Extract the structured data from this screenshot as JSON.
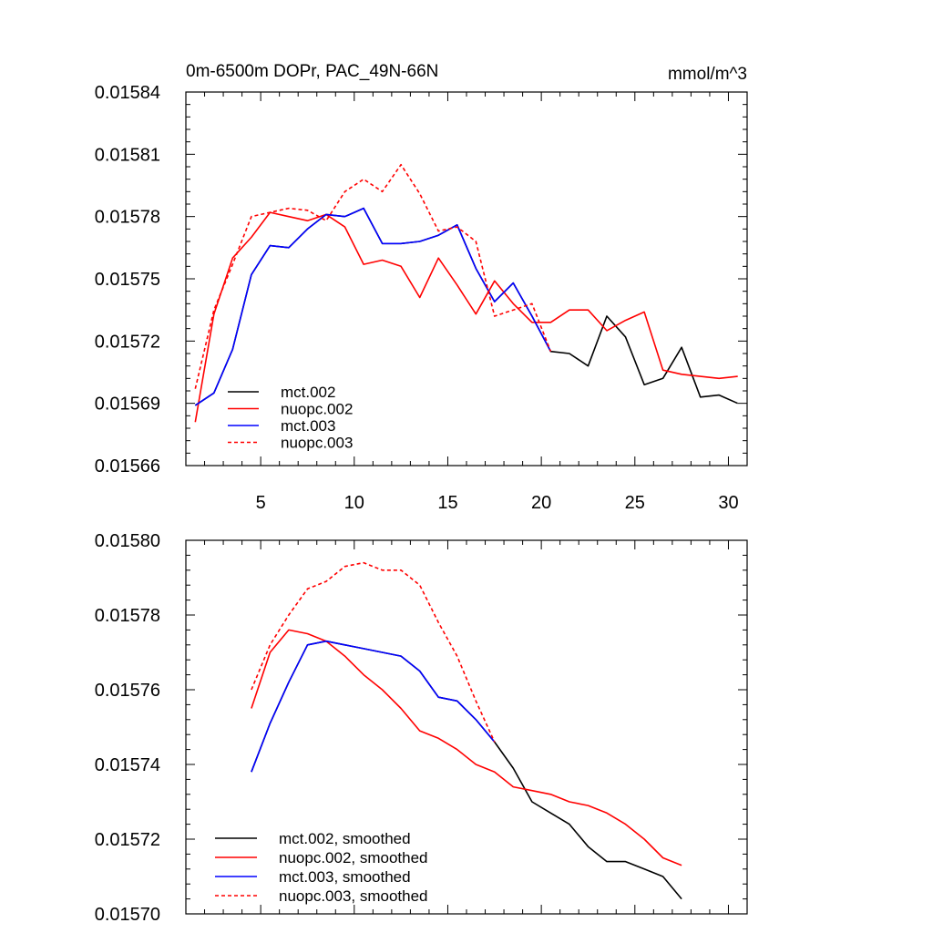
{
  "chart_data": [
    {
      "type": "line",
      "title": "0m-6500m DOPr, PAC_49N-66N",
      "units": "mmol/m^3",
      "xlim": [
        1,
        31
      ],
      "ylim": [
        0.01566,
        0.01584
      ],
      "xticks": [
        5,
        10,
        15,
        20,
        25,
        30
      ],
      "xtick_labels": [
        "5",
        "10",
        "15",
        "20",
        "25",
        "30"
      ],
      "yticks": [
        0.01566,
        0.01569,
        0.01572,
        0.01575,
        0.01578,
        0.01581,
        0.01584
      ],
      "ytick_labels": [
        "0.01566",
        "0.01569",
        "0.01572",
        "0.01575",
        "0.01578",
        "0.01581",
        "0.01584"
      ],
      "legend_position": "bottom-left",
      "series": [
        {
          "name": "mct.002",
          "color": "#000000",
          "dash": "solid",
          "x": [
            1.5,
            2.5,
            3.5,
            4.5,
            5.5,
            6.5,
            7.5,
            8.5,
            9.5,
            10.5,
            11.5,
            12.5,
            13.5,
            14.5,
            15.5,
            16.5,
            17.5,
            18.5,
            19.5,
            20.5,
            21.5,
            22.5,
            23.5,
            24.5,
            25.5,
            26.5,
            27.5,
            28.5,
            29.5,
            30.5
          ],
          "y": [
            0.015689,
            0.015695,
            0.015716,
            0.015752,
            0.015766,
            0.015765,
            0.015774,
            0.015781,
            0.01578,
            0.015784,
            0.015767,
            0.015767,
            0.015768,
            0.015771,
            0.015776,
            0.015755,
            0.015739,
            0.015748,
            0.015732,
            0.015715,
            0.015714,
            0.015708,
            0.015732,
            0.015722,
            0.015699,
            0.015702,
            0.015717,
            0.015693,
            0.015694,
            0.01569
          ]
        },
        {
          "name": "nuopc.002",
          "color": "#ff0000",
          "dash": "solid",
          "x": [
            1.5,
            2.5,
            3.5,
            4.5,
            5.5,
            6.5,
            7.5,
            8.5,
            9.5,
            10.5,
            11.5,
            12.5,
            13.5,
            14.5,
            15.5,
            16.5,
            17.5,
            18.5,
            19.5,
            20.5,
            21.5,
            22.5,
            23.5,
            24.5,
            25.5,
            26.5,
            27.5,
            28.5,
            29.5,
            30.5
          ],
          "y": [
            0.015681,
            0.015733,
            0.01576,
            0.01577,
            0.015782,
            0.01578,
            0.015778,
            0.015781,
            0.015775,
            0.015757,
            0.015759,
            0.015756,
            0.015741,
            0.01576,
            0.015747,
            0.015733,
            0.015749,
            0.015738,
            0.015729,
            0.015729,
            0.015735,
            0.015735,
            0.015725,
            0.01573,
            0.015734,
            0.015706,
            0.015704,
            0.015703,
            0.015702,
            0.015703
          ]
        },
        {
          "name": "mct.003",
          "color": "#0000ff",
          "dash": "solid",
          "x": [
            1.5,
            2.5,
            3.5,
            4.5,
            5.5,
            6.5,
            7.5,
            8.5,
            9.5,
            10.5,
            11.5,
            12.5,
            13.5,
            14.5,
            15.5,
            16.5,
            17.5,
            18.5,
            19.5,
            20.5
          ],
          "y": [
            0.015689,
            0.015695,
            0.015716,
            0.015752,
            0.015766,
            0.015765,
            0.015774,
            0.015781,
            0.01578,
            0.015784,
            0.015767,
            0.015767,
            0.015768,
            0.015771,
            0.015776,
            0.015755,
            0.015739,
            0.015748,
            0.015732,
            0.015715
          ]
        },
        {
          "name": "nuopc.003",
          "color": "#ff0000",
          "dash": "dashed",
          "x": [
            1.5,
            2.5,
            3.5,
            4.5,
            5.5,
            6.5,
            7.5,
            8.5,
            9.5,
            10.5,
            11.5,
            12.5,
            13.5,
            14.5,
            15.5,
            16.5,
            17.5,
            18.5,
            19.5,
            20.5
          ],
          "y": [
            0.015697,
            0.015735,
            0.015757,
            0.01578,
            0.015782,
            0.015784,
            0.015783,
            0.015778,
            0.015792,
            0.015798,
            0.015792,
            0.015805,
            0.015791,
            0.015773,
            0.015775,
            0.015768,
            0.015732,
            0.015735,
            0.015738,
            0.015715
          ]
        }
      ]
    },
    {
      "type": "line",
      "title": "",
      "xlim": [
        1,
        31
      ],
      "ylim": [
        0.0157,
        0.0158
      ],
      "xticks": [
        5,
        10,
        15,
        20,
        25,
        30
      ],
      "xtick_labels": [],
      "yticks": [
        0.0157,
        0.01572,
        0.01574,
        0.01576,
        0.01578,
        0.0158
      ],
      "ytick_labels": [
        "0.01570",
        "0.01572",
        "0.01574",
        "0.01576",
        "0.01578",
        "0.01580"
      ],
      "legend_position": "bottom-left",
      "series": [
        {
          "name": "mct.002, smoothed",
          "color": "#000000",
          "dash": "solid",
          "x": [
            4.5,
            5.5,
            6.5,
            7.5,
            8.5,
            9.5,
            10.5,
            11.5,
            12.5,
            13.5,
            14.5,
            15.5,
            16.5,
            17.5,
            18.5,
            19.5,
            20.5,
            21.5,
            22.5,
            23.5,
            24.5,
            25.5,
            26.5,
            27.5
          ],
          "y": [
            0.015738,
            0.015751,
            0.015762,
            0.015772,
            0.015773,
            0.015772,
            0.015771,
            0.01577,
            0.015769,
            0.015765,
            0.015758,
            0.015757,
            0.015752,
            0.015746,
            0.015739,
            0.01573,
            0.015727,
            0.015724,
            0.015718,
            0.015714,
            0.015714,
            0.015712,
            0.01571,
            0.015704
          ]
        },
        {
          "name": "nuopc.002, smoothed",
          "color": "#ff0000",
          "dash": "solid",
          "x": [
            4.5,
            5.5,
            6.5,
            7.5,
            8.5,
            9.5,
            10.5,
            11.5,
            12.5,
            13.5,
            14.5,
            15.5,
            16.5,
            17.5,
            18.5,
            19.5,
            20.5,
            21.5,
            22.5,
            23.5,
            24.5,
            25.5,
            26.5,
            27.5
          ],
          "y": [
            0.015755,
            0.01577,
            0.015776,
            0.015775,
            0.015773,
            0.015769,
            0.015764,
            0.01576,
            0.015755,
            0.015749,
            0.015747,
            0.015744,
            0.01574,
            0.015738,
            0.015734,
            0.015733,
            0.015732,
            0.01573,
            0.015729,
            0.015727,
            0.015724,
            0.01572,
            0.015715,
            0.015713
          ]
        },
        {
          "name": "mct.003, smoothed",
          "color": "#0000ff",
          "dash": "solid",
          "x": [
            4.5,
            5.5,
            6.5,
            7.5,
            8.5,
            9.5,
            10.5,
            11.5,
            12.5,
            13.5,
            14.5,
            15.5,
            16.5,
            17.5
          ],
          "y": [
            0.015738,
            0.015751,
            0.015762,
            0.015772,
            0.015773,
            0.015772,
            0.015771,
            0.01577,
            0.015769,
            0.015765,
            0.015758,
            0.015757,
            0.015752,
            0.015746
          ]
        },
        {
          "name": "nuopc.003, smoothed",
          "color": "#ff0000",
          "dash": "dashed",
          "x": [
            4.5,
            5.5,
            6.5,
            7.5,
            8.5,
            9.5,
            10.5,
            11.5,
            12.5,
            13.5,
            14.5,
            15.5,
            16.5,
            17.5
          ],
          "y": [
            0.01576,
            0.015772,
            0.01578,
            0.015787,
            0.015789,
            0.015793,
            0.015794,
            0.015792,
            0.015792,
            0.015788,
            0.015778,
            0.015769,
            0.015757,
            0.015746
          ]
        }
      ]
    }
  ]
}
